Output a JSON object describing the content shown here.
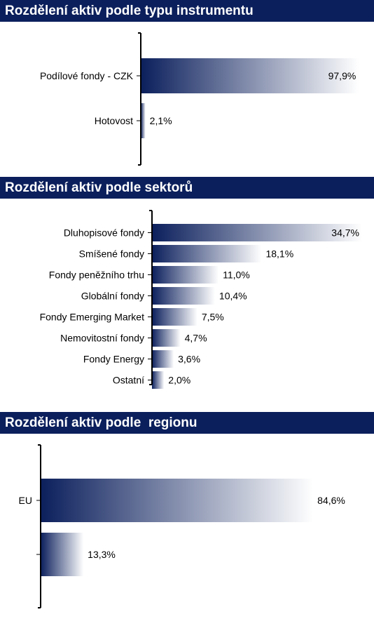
{
  "chart_data": [
    {
      "type": "bar",
      "orientation": "horizontal",
      "title": "Rozdělení aktiv podle typu instrumentu",
      "categories": [
        "Podílové fondy - CZK",
        "Hotovost"
      ],
      "values": [
        97.9,
        2.1
      ],
      "value_labels": [
        "97,9%",
        "2,1%"
      ],
      "xlim": [
        0,
        100
      ],
      "grid": false,
      "legend": "none",
      "colors": {
        "bar_start": "#0b1f5c",
        "bar_end": "#ffffff"
      }
    },
    {
      "type": "bar",
      "orientation": "horizontal",
      "title": "Rozdělení aktiv podle sektorů",
      "categories": [
        "Dluhopisové fondy",
        "Smíšené fondy",
        "Fondy peněžního trhu",
        "Globální fondy",
        "Fondy Emerging Market",
        "Nemovitostní fondy",
        "Fondy Energy",
        "Ostatní"
      ],
      "values": [
        34.7,
        18.1,
        11.0,
        10.4,
        7.5,
        4.7,
        3.6,
        2.0
      ],
      "value_labels": [
        "34,7%",
        "18,1%",
        "11,0%",
        "10,4%",
        "7,5%",
        "4,7%",
        "3,6%",
        "2,0%"
      ],
      "xlim": [
        0,
        34.7
      ],
      "grid": false,
      "legend": "none",
      "colors": {
        "bar_start": "#0b1f5c",
        "bar_end": "#ffffff"
      }
    },
    {
      "type": "bar",
      "orientation": "horizontal",
      "title": "Rozdělení aktiv podle  regionu",
      "categories": [
        "EU",
        ""
      ],
      "values": [
        84.6,
        13.3
      ],
      "value_labels": [
        "84,6%",
        "13,3%"
      ],
      "xlim": [
        0,
        100
      ],
      "grid": false,
      "legend": "none",
      "colors": {
        "bar_start": "#0b1f5c",
        "bar_end": "#ffffff"
      }
    }
  ]
}
